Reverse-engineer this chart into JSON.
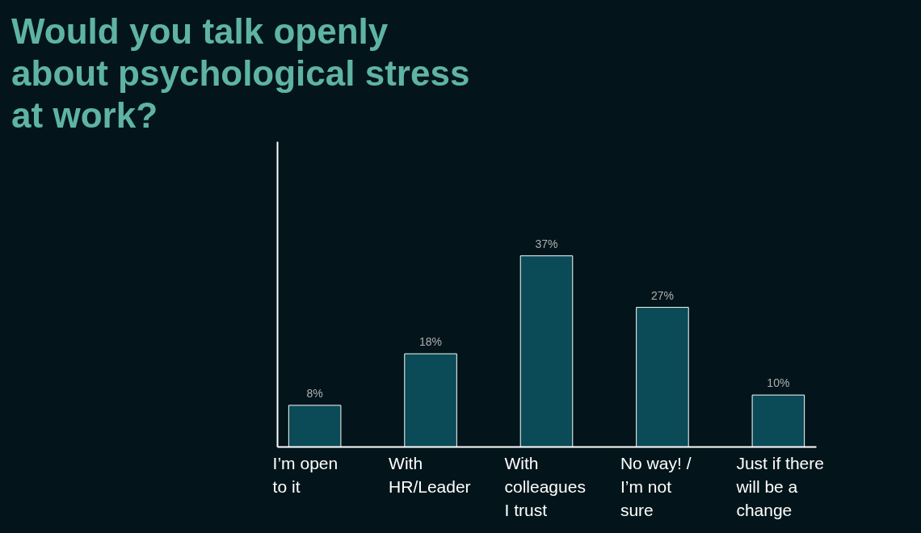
{
  "chart_data": {
    "type": "bar",
    "title": "Would you talk openly about psychological stress at work?",
    "categories": [
      "I’m open\nto it",
      "With\nHR/Leader",
      "With\ncolleagues\nI trust",
      "No way! /\nI’m not\nsure",
      "Just if there\nwill be a\nchange"
    ],
    "values": [
      8,
      18,
      37,
      27,
      10
    ],
    "value_labels": [
      "8%",
      "18%",
      "37%",
      "27%",
      "10%"
    ],
    "color": "#0b4a57",
    "tick_labels": "x"
  }
}
